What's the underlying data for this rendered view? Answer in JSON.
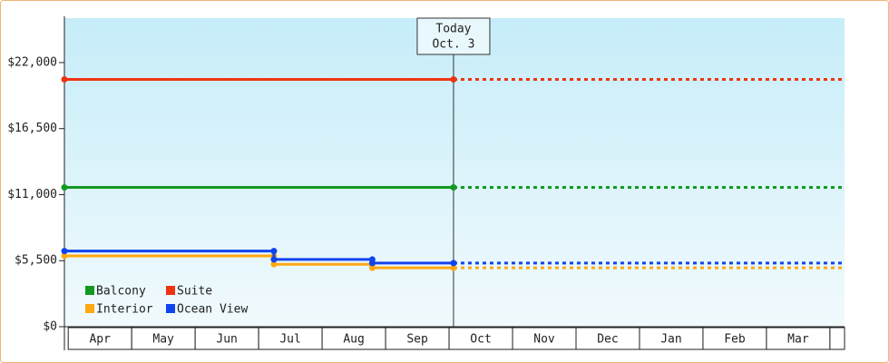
{
  "chart_data": {
    "type": "step",
    "categories": [
      "Apr",
      "May",
      "Jun",
      "Jul",
      "Aug",
      "Sep",
      "Oct",
      "Nov",
      "Dec",
      "Jan",
      "Feb",
      "Mar"
    ],
    "xlim": [
      -0.06,
      12.23
    ],
    "ylim": [
      0,
      25700
    ],
    "yticks": [
      {
        "value": 0,
        "label": "$0"
      },
      {
        "value": 5500,
        "label": "$5,500"
      },
      {
        "value": 11000,
        "label": "$11,000"
      },
      {
        "value": 16500,
        "label": "$16,500"
      },
      {
        "value": 22000,
        "label": "$22,000"
      }
    ],
    "today": {
      "x": 6.07,
      "label": [
        "Today",
        "Oct. 3"
      ]
    },
    "legend": "bottom-left",
    "series": [
      {
        "name": "Balcony",
        "color": "#119922",
        "x": [
          -0.06,
          6.07
        ],
        "values": [
          11600,
          11600
        ]
      },
      {
        "name": "Suite",
        "color": "#ee3311",
        "x": [
          -0.06,
          6.07
        ],
        "values": [
          20600,
          20600
        ]
      },
      {
        "name": "Interior",
        "color": "#ffa811",
        "x": [
          -0.06,
          3.24,
          4.79,
          6.07
        ],
        "values": [
          5900,
          5200,
          4900,
          4900
        ]
      },
      {
        "name": "Ocean View",
        "color": "#1144ee",
        "x": [
          -0.06,
          3.24,
          4.79,
          6.07
        ],
        "values": [
          6300,
          5600,
          5300,
          5300
        ]
      }
    ]
  }
}
